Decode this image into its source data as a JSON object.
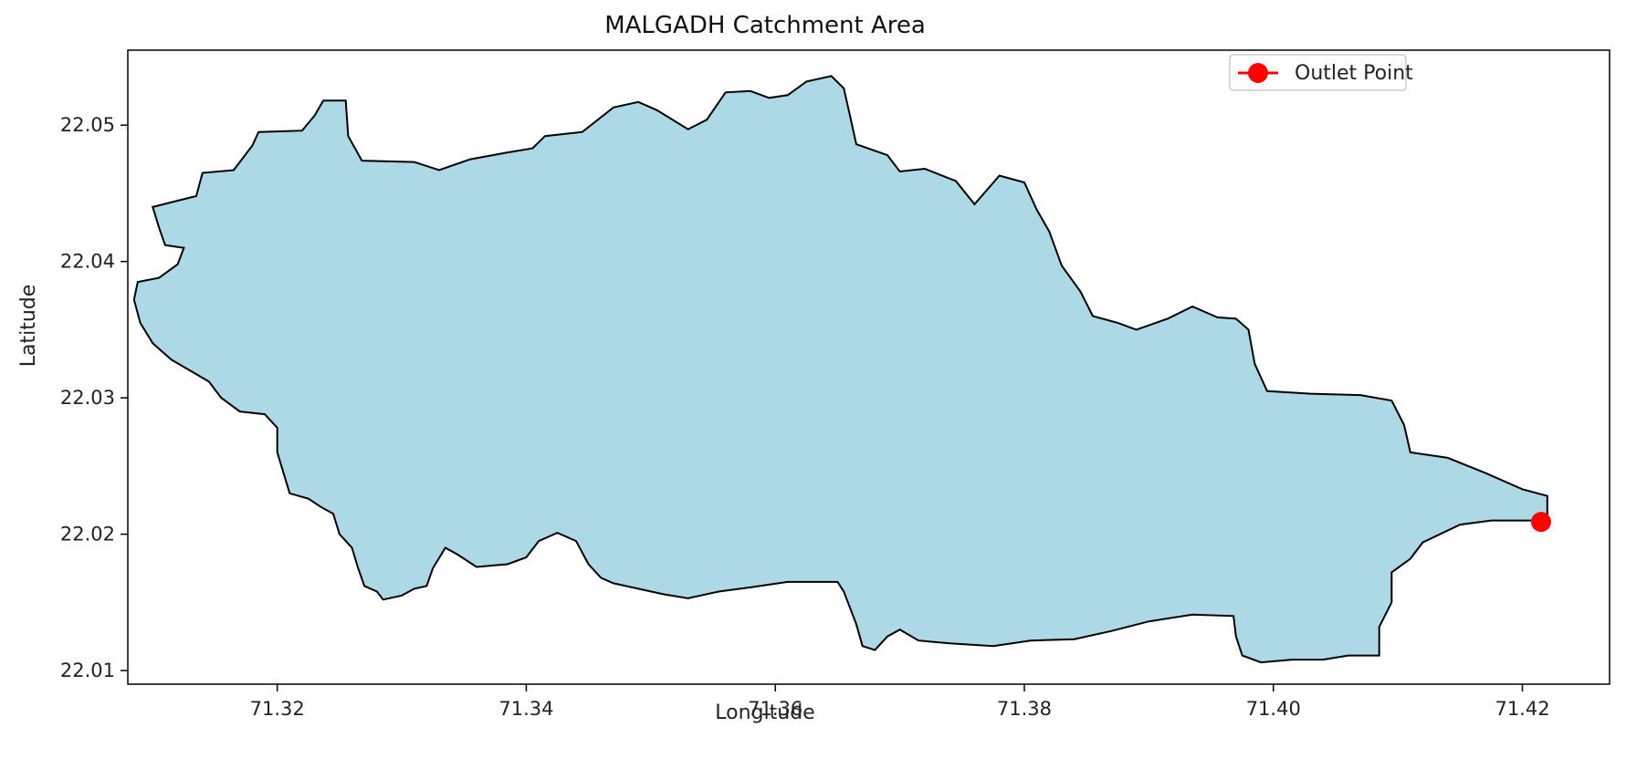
{
  "chart_data": {
    "type": "map",
    "title": "MALGADH Catchment Area",
    "xlabel": "Longitude",
    "ylabel": "Latitude",
    "xlim": [
      71.308,
      71.427
    ],
    "ylim": [
      22.009,
      22.0555
    ],
    "xticks": [
      71.32,
      71.34,
      71.36,
      71.38,
      71.4,
      71.42
    ],
    "xtick_labels": [
      "71.32",
      "71.34",
      "71.36",
      "71.38",
      "71.40",
      "71.42"
    ],
    "yticks": [
      22.01,
      22.02,
      22.03,
      22.04,
      22.05
    ],
    "ytick_labels": [
      "22.01",
      "22.02",
      "22.03",
      "22.04",
      "22.05"
    ],
    "grid": false,
    "legend": {
      "placement": "top-right",
      "entries": [
        "Outlet Point"
      ]
    },
    "colors": {
      "catchment_fill": "#add8e6",
      "catchment_edge": "#000000",
      "outlet": "#ff0000"
    },
    "catchment_boundary": [
      [
        71.3135,
        22.0448
      ],
      [
        71.314,
        22.0465
      ],
      [
        71.3165,
        22.0467
      ],
      [
        71.318,
        22.0485
      ],
      [
        71.3185,
        22.0495
      ],
      [
        71.322,
        22.0496
      ],
      [
        71.323,
        22.0507
      ],
      [
        71.3237,
        22.0518
      ],
      [
        71.3255,
        22.0518
      ],
      [
        71.3257,
        22.0492
      ],
      [
        71.3268,
        22.0474
      ],
      [
        71.331,
        22.0473
      ],
      [
        71.333,
        22.0467
      ],
      [
        71.3355,
        22.0475
      ],
      [
        71.3385,
        22.048
      ],
      [
        71.3405,
        22.0483
      ],
      [
        71.3415,
        22.0492
      ],
      [
        71.3445,
        22.0495
      ],
      [
        71.347,
        22.0513
      ],
      [
        71.349,
        22.0517
      ],
      [
        71.3505,
        22.0511
      ],
      [
        71.353,
        22.0497
      ],
      [
        71.3545,
        22.0504
      ],
      [
        71.356,
        22.0524
      ],
      [
        71.358,
        22.0525
      ],
      [
        71.3595,
        22.052
      ],
      [
        71.361,
        22.0522
      ],
      [
        71.3625,
        22.0532
      ],
      [
        71.3645,
        22.0536
      ],
      [
        71.3655,
        22.0527
      ],
      [
        71.366,
        22.0507
      ],
      [
        71.3665,
        22.0486
      ],
      [
        71.369,
        22.0478
      ],
      [
        71.37,
        22.0466
      ],
      [
        71.372,
        22.0468
      ],
      [
        71.3745,
        22.0459
      ],
      [
        71.376,
        22.0442
      ],
      [
        71.378,
        22.0463
      ],
      [
        71.38,
        22.0458
      ],
      [
        71.381,
        22.0438
      ],
      [
        71.382,
        22.0422
      ],
      [
        71.383,
        22.0397
      ],
      [
        71.3845,
        22.0378
      ],
      [
        71.3855,
        22.036
      ],
      [
        71.3875,
        22.0355
      ],
      [
        71.389,
        22.035
      ],
      [
        71.3915,
        22.0358
      ],
      [
        71.3935,
        22.0367
      ],
      [
        71.3955,
        22.0359
      ],
      [
        71.397,
        22.0358
      ],
      [
        71.398,
        22.035
      ],
      [
        71.3985,
        22.0325
      ],
      [
        71.3995,
        22.0305
      ],
      [
        71.403,
        22.0303
      ],
      [
        71.407,
        22.0302
      ],
      [
        71.4095,
        22.0298
      ],
      [
        71.4105,
        22.028
      ],
      [
        71.411,
        22.026
      ],
      [
        71.414,
        22.0256
      ],
      [
        71.417,
        22.0245
      ],
      [
        71.42,
        22.0233
      ],
      [
        71.422,
        22.0228
      ],
      [
        71.422,
        22.021
      ],
      [
        71.4175,
        22.021
      ],
      [
        71.415,
        22.0207
      ],
      [
        71.412,
        22.0194
      ],
      [
        71.411,
        22.0182
      ],
      [
        71.4095,
        22.0172
      ],
      [
        71.4095,
        22.015
      ],
      [
        71.4085,
        22.0132
      ],
      [
        71.4085,
        22.0111
      ],
      [
        71.406,
        22.0111
      ],
      [
        71.404,
        22.0108
      ],
      [
        71.4015,
        22.0108
      ],
      [
        71.399,
        22.0106
      ],
      [
        71.3975,
        22.0111
      ],
      [
        71.397,
        22.0125
      ],
      [
        71.3968,
        22.014
      ],
      [
        71.3935,
        22.0141
      ],
      [
        71.39,
        22.0136
      ],
      [
        71.387,
        22.0129
      ],
      [
        71.384,
        22.0123
      ],
      [
        71.3805,
        22.0122
      ],
      [
        71.3775,
        22.0118
      ],
      [
        71.374,
        22.012
      ],
      [
        71.3715,
        22.0122
      ],
      [
        71.37,
        22.013
      ],
      [
        71.369,
        22.0125
      ],
      [
        71.368,
        22.0115
      ],
      [
        71.367,
        22.0118
      ],
      [
        71.3665,
        22.0134
      ],
      [
        71.3655,
        22.0158
      ],
      [
        71.365,
        22.0165
      ],
      [
        71.361,
        22.0165
      ],
      [
        71.358,
        22.0161
      ],
      [
        71.3555,
        22.0158
      ],
      [
        71.353,
        22.0153
      ],
      [
        71.351,
        22.0156
      ],
      [
        71.349,
        22.016
      ],
      [
        71.347,
        22.0164
      ],
      [
        71.346,
        22.0168
      ],
      [
        71.345,
        22.0178
      ],
      [
        71.344,
        22.0195
      ],
      [
        71.3425,
        22.0201
      ],
      [
        71.341,
        22.0195
      ],
      [
        71.34,
        22.0183
      ],
      [
        71.3385,
        22.0178
      ],
      [
        71.336,
        22.0176
      ],
      [
        71.3345,
        22.0185
      ],
      [
        71.3335,
        22.019
      ],
      [
        71.3325,
        22.0175
      ],
      [
        71.332,
        22.0162
      ],
      [
        71.331,
        22.016
      ],
      [
        71.33,
        22.0155
      ],
      [
        71.3285,
        22.0152
      ],
      [
        71.328,
        22.0158
      ],
      [
        71.327,
        22.0162
      ],
      [
        71.3265,
        22.0175
      ],
      [
        71.326,
        22.019
      ],
      [
        71.325,
        22.02
      ],
      [
        71.3245,
        22.0215
      ],
      [
        71.3235,
        22.022
      ],
      [
        71.3225,
        22.0226
      ],
      [
        71.321,
        22.023
      ],
      [
        71.3205,
        22.0245
      ],
      [
        71.32,
        22.026
      ],
      [
        71.32,
        22.0278
      ],
      [
        71.319,
        22.0288
      ],
      [
        71.317,
        22.029
      ],
      [
        71.3155,
        22.03
      ],
      [
        71.3145,
        22.0312
      ],
      [
        71.313,
        22.032
      ],
      [
        71.3115,
        22.0328
      ],
      [
        71.31,
        22.034
      ],
      [
        71.309,
        22.0355
      ],
      [
        71.3085,
        22.0372
      ],
      [
        71.3088,
        22.0385
      ],
      [
        71.3105,
        22.0388
      ],
      [
        71.312,
        22.0398
      ],
      [
        71.3125,
        22.041
      ],
      [
        71.311,
        22.0412
      ],
      [
        71.3105,
        22.0425
      ],
      [
        71.31,
        22.044
      ]
    ],
    "outlet_point": {
      "name": "Outlet Point",
      "x": 71.4215,
      "y": 22.0209
    }
  }
}
